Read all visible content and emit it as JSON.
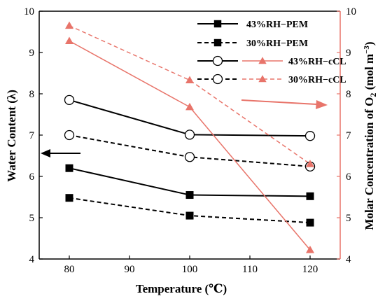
{
  "chart_data": {
    "type": "line",
    "x": [
      80,
      100,
      120
    ],
    "xlabel": "Temperature (℃)",
    "xlim": [
      75,
      125
    ],
    "xticks": [
      80,
      90,
      100,
      110,
      120
    ],
    "ylabel_left": "Water Content (λ)",
    "ylim_left": [
      4,
      10
    ],
    "yticks_left": [
      4,
      5,
      6,
      7,
      8,
      9,
      10
    ],
    "ylabel_right_main": "Molar Concentration of O",
    "ylabel_right_sub": "2",
    "ylabel_right_unit": "(mol m",
    "ylabel_right_sup": "−3",
    "ylabel_right_close": ")",
    "ylim_right": [
      4,
      10
    ],
    "yticks_right": [
      4,
      5,
      6,
      7,
      8,
      9,
      10
    ],
    "legend_position": "top-right",
    "left_axis_color": "#000000",
    "right_axis_color": "#e8746a",
    "series": [
      {
        "name": "43%RH−PEM",
        "axis": "left",
        "values": [
          6.2,
          5.55,
          5.52
        ],
        "marker": "square",
        "style": "solid",
        "color": "#000000"
      },
      {
        "name": "30%RH−PEM",
        "axis": "left",
        "values": [
          5.48,
          5.05,
          4.88
        ],
        "marker": "square",
        "style": "dashed",
        "color": "#000000"
      },
      {
        "name": "43%RH−cCL",
        "axis": "left",
        "values": [
          7.85,
          7.01,
          6.98
        ],
        "marker": "circle",
        "style": "solid",
        "color": "#000000"
      },
      {
        "name": "30%RH−cCL",
        "axis": "left",
        "values": [
          7.0,
          6.47,
          6.24
        ],
        "marker": "circle",
        "style": "dashed",
        "color": "#000000"
      },
      {
        "name": "43%RH−cCL",
        "axis": "right",
        "values": [
          9.28,
          7.68,
          4.22
        ],
        "marker": "triangle",
        "style": "solid",
        "color": "#e8746a"
      },
      {
        "name": "30%RH−cCL",
        "axis": "right",
        "values": [
          9.65,
          8.33,
          6.3
        ],
        "marker": "triangle",
        "style": "dashed",
        "color": "#e8746a"
      }
    ]
  }
}
